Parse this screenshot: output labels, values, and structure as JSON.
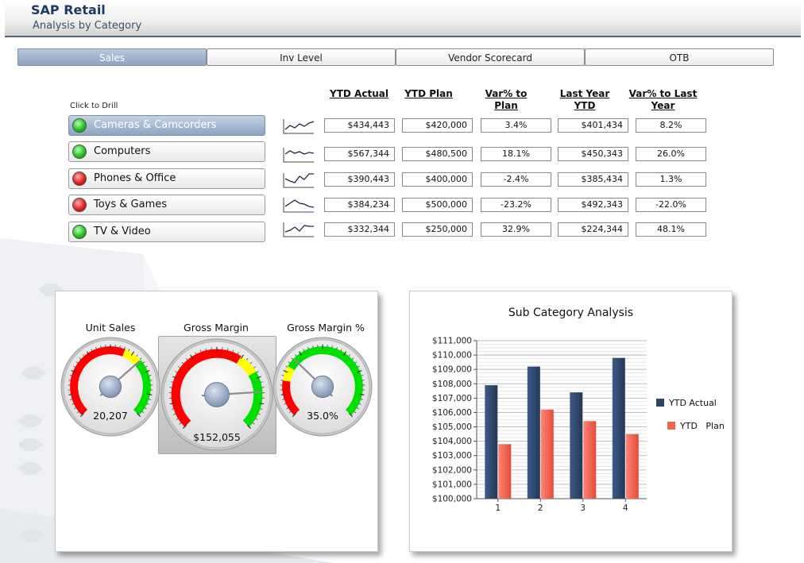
{
  "header": {
    "title": "SAP Retail",
    "subtitle": "Analysis by Category"
  },
  "tabs": [
    {
      "label": "Sales",
      "active": true
    },
    {
      "label": "Inv Level",
      "active": false
    },
    {
      "label": "Vendor Scorecard",
      "active": false
    },
    {
      "label": "OTB",
      "active": false
    }
  ],
  "drill": {
    "hint": "Click to Drill"
  },
  "columns": {
    "ytd_actual": "YTD Actual",
    "ytd_plan": "YTD Plan",
    "var_plan": "Var% to Plan",
    "last_year": "Last Year YTD",
    "var_last_year": "Var% to Last Year"
  },
  "categories": [
    {
      "name": "Cameras & Camcorders",
      "status": "green",
      "selected": true,
      "ytd_actual": "$434,443",
      "ytd_plan": "$420,000",
      "var_plan": "3.4%",
      "last_year": "$401,434",
      "var_last_year": "8.2%"
    },
    {
      "name": "Computers",
      "status": "green",
      "selected": false,
      "ytd_actual": "$567,344",
      "ytd_plan": "$480,500",
      "var_plan": "18.1%",
      "last_year": "$450,343",
      "var_last_year": "26.0%"
    },
    {
      "name": "Phones & Office",
      "status": "red",
      "selected": false,
      "ytd_actual": "$390,443",
      "ytd_plan": "$400,000",
      "var_plan": "-2.4%",
      "last_year": "$385,434",
      "var_last_year": "1.3%"
    },
    {
      "name": "Toys & Games",
      "status": "red",
      "selected": false,
      "ytd_actual": "$384,234",
      "ytd_plan": "$500,000",
      "var_plan": "-23.2%",
      "last_year": "$492,343",
      "var_last_year": "-22.0%"
    },
    {
      "name": "TV & Video",
      "status": "green",
      "selected": false,
      "ytd_actual": "$332,344",
      "ytd_plan": "$250,000",
      "var_plan": "32.9%",
      "last_year": "$224,344",
      "var_last_year": "48.1%"
    }
  ],
  "sparklines": [
    [
      4,
      9,
      6,
      11,
      8,
      12,
      14
    ],
    [
      9,
      13,
      10,
      12,
      9,
      11,
      10
    ],
    [
      10,
      7,
      5,
      13,
      9,
      16,
      16
    ],
    [
      6,
      10,
      14,
      10,
      9,
      6,
      5
    ],
    [
      5,
      7,
      11,
      6,
      13,
      12,
      12
    ]
  ],
  "gauges": [
    {
      "label": "Unit Sales",
      "value": "20,207",
      "needle": 0.68
    },
    {
      "label": "Gross Margin",
      "value": "$152,055",
      "needle": 0.82
    },
    {
      "label": "Gross Margin %",
      "value": "35.0%",
      "needle": 0.33
    }
  ],
  "colors": {
    "ytd_actual": "#2e4468",
    "ytd_plan": "#f26451",
    "gauge_red": "#ff0000",
    "gauge_yellow": "#ffff00",
    "gauge_green": "#00e000"
  },
  "chart_data": {
    "type": "bar",
    "title": "Sub Category Analysis",
    "categories": [
      "1",
      "2",
      "3",
      "4"
    ],
    "series": [
      {
        "name": "YTD Actual",
        "values": [
          107900,
          109200,
          107400,
          109800
        ]
      },
      {
        "name": "YTD   Plan",
        "values": [
          103800,
          106200,
          105400,
          104500
        ]
      }
    ],
    "ylim": [
      100000,
      111000
    ],
    "yticks": [
      "$100,000",
      "$101,000",
      "$102,000",
      "$103,000",
      "$104,000",
      "$105,000",
      "$106,000",
      "$107,000",
      "$108,000",
      "$109,000",
      "$110,000",
      "$111,000"
    ],
    "grid": true,
    "legend": "right"
  }
}
